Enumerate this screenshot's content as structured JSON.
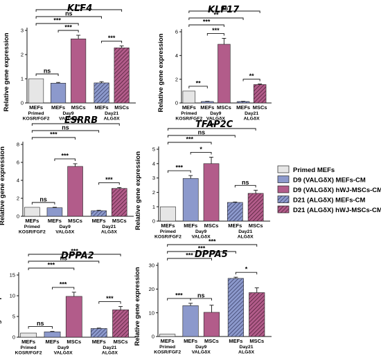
{
  "colors": {
    "primed": "#e6e6e6",
    "d9_mefs": "#8c99cc",
    "d9_mscs": "#b25c8a",
    "d21_mefs": "#8c99cc",
    "d21_mscs": "#b25c8a",
    "axis": "#111111"
  },
  "legend": {
    "items": [
      {
        "label": "Primed MEFs",
        "fill": "#e6e6e6",
        "pattern": "none"
      },
      {
        "label": "D9 (VALGδX) MEFs-CM",
        "fill": "#8c99cc",
        "pattern": "none"
      },
      {
        "label": "D9 (VALGδX) hWJ-MSCs-CM",
        "fill": "#b25c8a",
        "pattern": "none"
      },
      {
        "label": "D21 (ALGδX) MEFs-CM",
        "fill": "#8c99cc",
        "pattern": "hatch"
      },
      {
        "label": "D21 (ALGδX) hWJ-MSCs-CM",
        "fill": "#b25c8a",
        "pattern": "hatch"
      }
    ]
  },
  "chart_data": [
    {
      "type": "bar",
      "title": "KLF4",
      "ylabel": "Relative gene expression",
      "ylim": [
        0,
        3
      ],
      "yticks": [
        0,
        1,
        2,
        3
      ],
      "categories": [
        "MEFs",
        "MEFs",
        "MSCs",
        "MEFs",
        "MSCs"
      ],
      "group_labels": [
        "Primed\nKOSR/FGF2",
        "Day9\nVALGδX",
        "Day21\nALGδX"
      ],
      "values": [
        1.0,
        0.82,
        2.65,
        0.83,
        2.28
      ],
      "errors": [
        0.0,
        0.03,
        0.15,
        0.05,
        0.08
      ],
      "significance": [
        {
          "pair": [
            0,
            1
          ],
          "label": "ns"
        },
        {
          "pair": [
            1,
            2
          ],
          "label": "***"
        },
        {
          "pair": [
            3,
            4
          ],
          "label": "***"
        },
        {
          "pair": [
            0,
            2
          ],
          "label": "***"
        },
        {
          "pair": [
            0,
            3
          ],
          "label": "ns"
        },
        {
          "pair": [
            0,
            4
          ],
          "label": "***"
        }
      ]
    },
    {
      "type": "bar",
      "title": "KLF17",
      "ylabel": "Relative gene expression",
      "ylim": [
        0,
        6
      ],
      "yticks": [
        0,
        2,
        4,
        6
      ],
      "categories": [
        "MEFs",
        "MEFs",
        "MSCs",
        "MEFs",
        "MSCs"
      ],
      "group_labels": [
        "Primed\nKOSR/FGF2",
        "Day9\nVALGδX",
        "Day21\nALGδX"
      ],
      "values": [
        1.0,
        0.12,
        4.95,
        0.12,
        1.55
      ],
      "errors": [
        0.0,
        0.02,
        0.5,
        0.02,
        0.05
      ],
      "significance": [
        {
          "pair": [
            0,
            1
          ],
          "label": "**"
        },
        {
          "pair": [
            1,
            2
          ],
          "label": "***"
        },
        {
          "pair": [
            3,
            4
          ],
          "label": "**"
        },
        {
          "pair": [
            0,
            2
          ],
          "label": "***"
        },
        {
          "pair": [
            0,
            3
          ],
          "label": "**"
        },
        {
          "pair": [
            0,
            4
          ],
          "label": "ns"
        }
      ]
    },
    {
      "type": "bar",
      "title": "ESRRB",
      "ylabel": "Relative gene expression",
      "ylim": [
        0,
        8
      ],
      "yticks": [
        0,
        2,
        4,
        6,
        8
      ],
      "categories": [
        "MEFs",
        "MEFs",
        "MSCs",
        "MEFs",
        "MSCs"
      ],
      "group_labels": [
        "Primed\nKOSR/FGF2",
        "Day9\nVALGδX",
        "Day21\nALGδX"
      ],
      "values": [
        1.0,
        0.95,
        5.55,
        0.62,
        3.1
      ],
      "errors": [
        0.0,
        0.05,
        0.3,
        0.05,
        0.1
      ],
      "significance": [
        {
          "pair": [
            0,
            1
          ],
          "label": "ns"
        },
        {
          "pair": [
            1,
            2
          ],
          "label": "***"
        },
        {
          "pair": [
            3,
            4
          ],
          "label": "***"
        },
        {
          "pair": [
            0,
            2
          ],
          "label": "***"
        },
        {
          "pair": [
            0,
            3
          ],
          "label": "ns"
        },
        {
          "pair": [
            0,
            4
          ],
          "label": "***"
        }
      ]
    },
    {
      "type": "bar",
      "title": "TFAP2C",
      "ylabel": "Relative gene expression",
      "ylim": [
        0,
        5
      ],
      "yticks": [
        0,
        1,
        2,
        3,
        4,
        5
      ],
      "categories": [
        "MEFs",
        "MEFs",
        "MSCs",
        "MEFs",
        "MSCs"
      ],
      "group_labels": [
        "Primed\nKOSR/FGF2",
        "Day9\nVALGδX",
        "Day21\nALGδX"
      ],
      "values": [
        1.0,
        2.97,
        4.0,
        1.3,
        1.93
      ],
      "errors": [
        0.0,
        0.2,
        0.45,
        0.03,
        0.22
      ],
      "significance": [
        {
          "pair": [
            0,
            1
          ],
          "label": "***"
        },
        {
          "pair": [
            1,
            2
          ],
          "label": "*"
        },
        {
          "pair": [
            3,
            4
          ],
          "label": "ns"
        },
        {
          "pair": [
            0,
            2
          ],
          "label": "***"
        },
        {
          "pair": [
            0,
            3
          ],
          "label": "ns"
        },
        {
          "pair": [
            0,
            4
          ],
          "label": "**"
        }
      ]
    },
    {
      "type": "bar",
      "title": "DPPA2",
      "ylabel": "Relative gene expression",
      "ylim": [
        0,
        15
      ],
      "yticks": [
        0,
        5,
        10,
        15
      ],
      "categories": [
        "MEFs",
        "MEFs",
        "MSCs",
        "MEFs",
        "MSCs"
      ],
      "group_labels": [
        "Primed\nKOSR/FGF2",
        "Day9\nVALGδX",
        "Day21\nALGδX"
      ],
      "values": [
        1.0,
        1.3,
        9.85,
        2.1,
        6.6
      ],
      "errors": [
        0.0,
        0.1,
        1.0,
        0.1,
        0.8
      ],
      "significance": [
        {
          "pair": [
            0,
            1
          ],
          "label": "ns"
        },
        {
          "pair": [
            1,
            2
          ],
          "label": "***"
        },
        {
          "pair": [
            3,
            4
          ],
          "label": "***"
        },
        {
          "pair": [
            0,
            2
          ],
          "label": "***"
        },
        {
          "pair": [
            0,
            3
          ],
          "label": "ns"
        },
        {
          "pair": [
            0,
            4
          ],
          "label": "***"
        }
      ]
    },
    {
      "type": "bar",
      "title": "DPPA5",
      "ylabel": "Relative gene expression",
      "ylim": [
        0,
        30
      ],
      "yticks": [
        0,
        10,
        20,
        30
      ],
      "categories": [
        "MEFs",
        "MEFs",
        "MSCs",
        "MEFs",
        "MSCs"
      ],
      "group_labels": [
        "Primed\nKOSR/FGF2",
        "Day9\nVALGδX",
        "Day21\nALGδX"
      ],
      "values": [
        1.0,
        13.0,
        10.2,
        24.5,
        18.5
      ],
      "errors": [
        0.0,
        1.0,
        3.0,
        0.5,
        2.0
      ],
      "significance": [
        {
          "pair": [
            0,
            1
          ],
          "label": "***"
        },
        {
          "pair": [
            1,
            2
          ],
          "label": "ns"
        },
        {
          "pair": [
            3,
            4
          ],
          "label": "*"
        },
        {
          "pair": [
            0,
            2
          ],
          "label": "***"
        },
        {
          "pair": [
            0,
            3
          ],
          "label": "***"
        },
        {
          "pair": [
            0,
            4
          ],
          "label": "***"
        }
      ]
    }
  ]
}
